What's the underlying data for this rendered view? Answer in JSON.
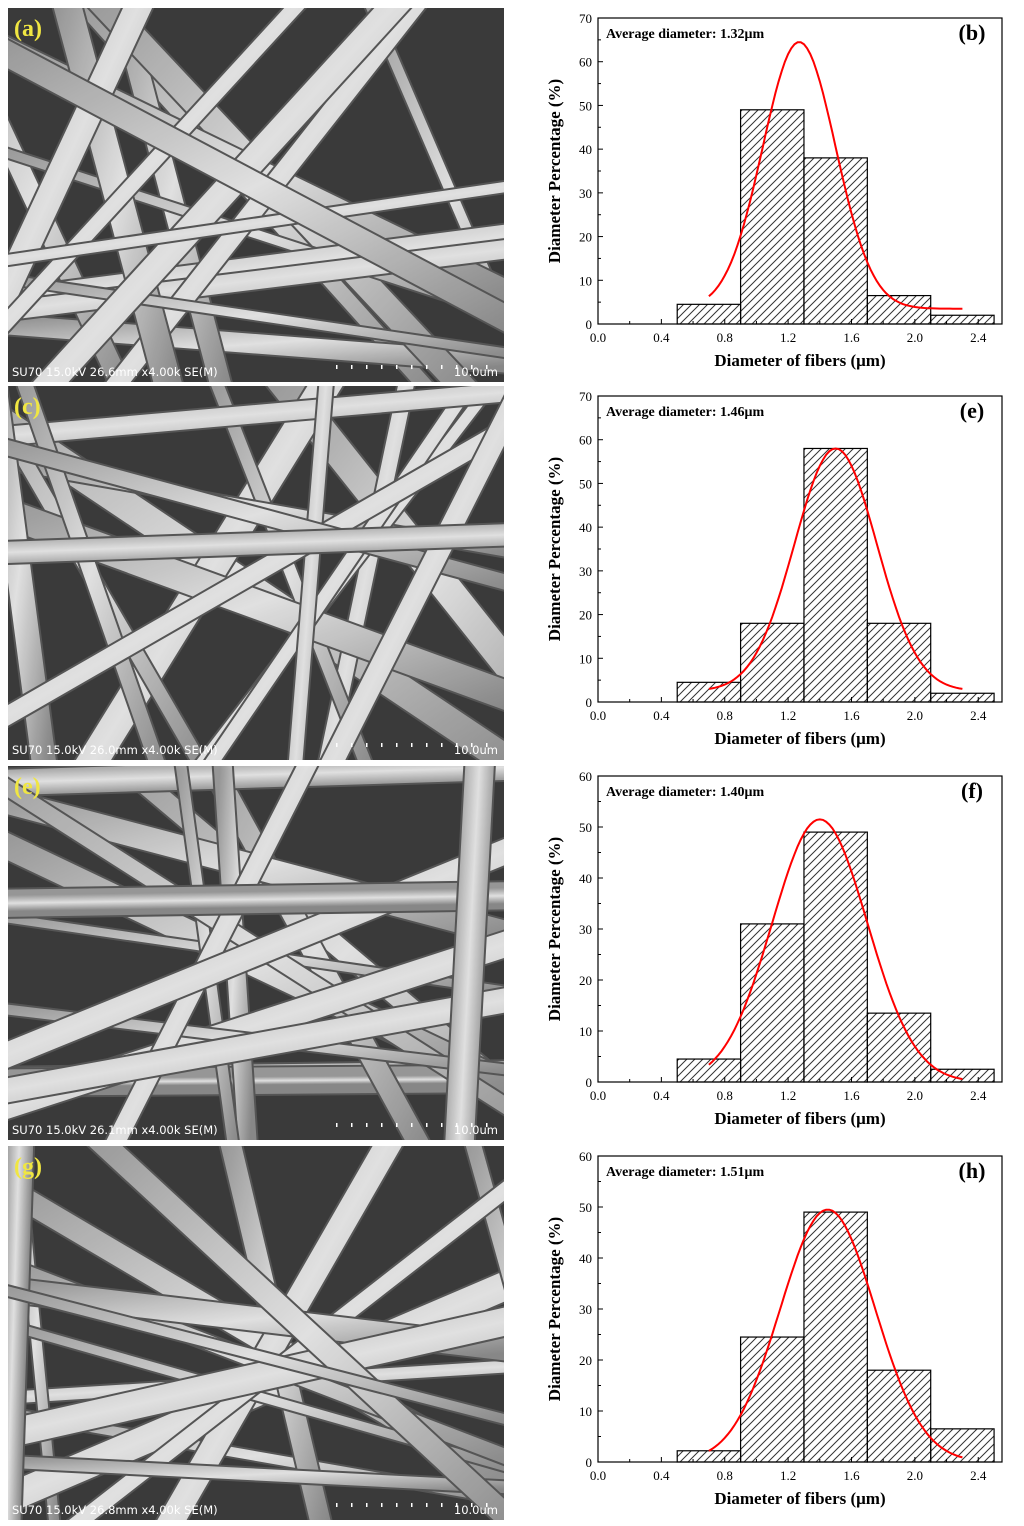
{
  "colors": {
    "fit_curve": "#ff0000",
    "bar_stroke": "#000000",
    "label": "#f0e642"
  },
  "panels": [
    {
      "sem": {
        "label": "(a)",
        "info": "SU70 15.0kV 26.6mm x4.00k SE(M)",
        "scale": "10.0um"
      },
      "chart": {
        "label": "(b)",
        "annotation": "Average diameter: 1.32μm",
        "xlabel": "Diameter of fibers (μm)",
        "ylabel": "Diameter Percentage (%)",
        "xticks": [
          "0.0",
          "0.4",
          "0.8",
          "1.2",
          "1.6",
          "2.0",
          "2.4"
        ],
        "yticks": [
          "0",
          "10",
          "20",
          "30",
          "40",
          "50",
          "60",
          "70"
        ]
      }
    },
    {
      "sem": {
        "label": "(c)",
        "info": "SU70 15.0kV 26.0mm x4.00k SE(M)",
        "scale": "10.0um"
      },
      "chart": {
        "label": "(e)",
        "annotation": "Average diameter: 1.46μm",
        "xlabel": "Diameter of fibers (μm)",
        "ylabel": "Diameter Percentage (%)",
        "xticks": [
          "0.0",
          "0.4",
          "0.8",
          "1.2",
          "1.6",
          "2.0",
          "2.4"
        ],
        "yticks": [
          "0",
          "10",
          "20",
          "30",
          "40",
          "50",
          "60",
          "70"
        ]
      }
    },
    {
      "sem": {
        "label": "(e)",
        "info": "SU70 15.0kV 26.1mm x4.00k SE(M)",
        "scale": "10.0um"
      },
      "chart": {
        "label": "(f)",
        "annotation": "Average diameter: 1.40μm",
        "xlabel": "Diameter of fibers (μm)",
        "ylabel": "Diameter Percentage (%)",
        "xticks": [
          "0.0",
          "0.4",
          "0.8",
          "1.2",
          "1.6",
          "2.0",
          "2.4"
        ],
        "yticks": [
          "0",
          "10",
          "20",
          "30",
          "40",
          "50",
          "60"
        ]
      }
    },
    {
      "sem": {
        "label": "(g)",
        "info": "SU70 15.0kV 26.8mm x4.00k SE(M)",
        "scale": "10.0um"
      },
      "chart": {
        "label": "(h)",
        "annotation": "Average diameter: 1.51μm",
        "xlabel": "Diameter of fibers (μm)",
        "ylabel": "Diameter Percentage (%)",
        "xticks": [
          "0.0",
          "0.4",
          "0.8",
          "1.2",
          "1.6",
          "2.0",
          "2.4"
        ],
        "yticks": [
          "0",
          "10",
          "20",
          "30",
          "40",
          "50",
          "60"
        ]
      }
    }
  ],
  "chart_data": [
    {
      "type": "bar",
      "xlim": [
        0.0,
        2.55
      ],
      "ylim": [
        0,
        70
      ],
      "bin_edges": [
        0.5,
        0.9,
        1.3,
        1.7,
        2.1,
        2.5
      ],
      "values": [
        4.5,
        49,
        38,
        6.5,
        2
      ],
      "fit_curve": {
        "type": "gaussian",
        "x_range": [
          0.7,
          2.3
        ],
        "peak_x": 1.27,
        "peak_y": 64.5,
        "sigma": 0.23,
        "baseline": 3.5
      }
    },
    {
      "type": "bar",
      "xlim": [
        0.0,
        2.55
      ],
      "ylim": [
        0,
        70
      ],
      "bin_edges": [
        0.5,
        0.9,
        1.3,
        1.7,
        2.1,
        2.5
      ],
      "values": [
        4.5,
        18,
        58,
        18,
        2
      ],
      "fit_curve": {
        "type": "gaussian",
        "x_range": [
          0.7,
          2.3
        ],
        "peak_x": 1.5,
        "peak_y": 58,
        "sigma": 0.26,
        "baseline": 2.5
      }
    },
    {
      "type": "bar",
      "xlim": [
        0.0,
        2.55
      ],
      "ylim": [
        0,
        60
      ],
      "bin_edges": [
        0.5,
        0.9,
        1.3,
        1.7,
        2.1,
        2.5
      ],
      "values": [
        4.5,
        31,
        49,
        13.5,
        2.5
      ],
      "fit_curve": {
        "type": "gaussian",
        "x_range": [
          0.7,
          2.3
        ],
        "peak_x": 1.4,
        "peak_y": 51.5,
        "sigma": 0.3,
        "baseline": 0
      }
    },
    {
      "type": "bar",
      "xlim": [
        0.0,
        2.55
      ],
      "ylim": [
        0,
        60
      ],
      "bin_edges": [
        0.5,
        0.9,
        1.3,
        1.7,
        2.1,
        2.5
      ],
      "values": [
        2.2,
        24.5,
        49,
        18,
        6.5
      ],
      "fit_curve": {
        "type": "gaussian",
        "x_range": [
          0.7,
          2.3
        ],
        "peak_x": 1.45,
        "peak_y": 49.5,
        "sigma": 0.3,
        "baseline": 0
      }
    }
  ]
}
